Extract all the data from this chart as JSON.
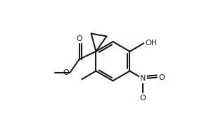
{
  "bg_color": "#ffffff",
  "line_color": "#1a1a1a",
  "lw": 1.5,
  "figsize": [
    2.8,
    1.77
  ],
  "dpi": 100,
  "xlim": [
    0,
    280
  ],
  "ylim": [
    0,
    177
  ]
}
